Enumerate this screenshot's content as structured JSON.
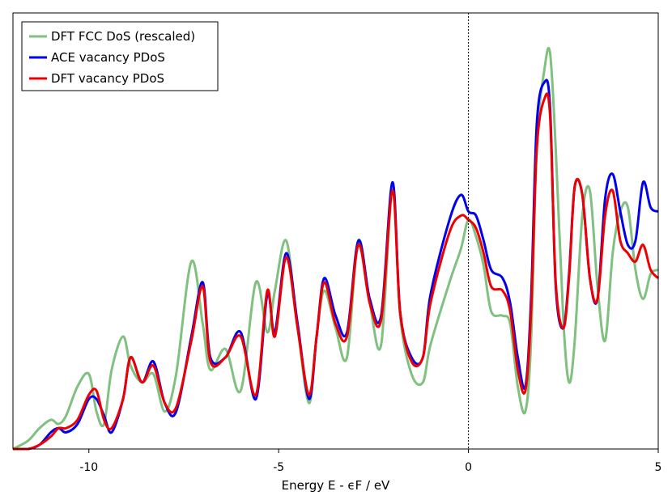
{
  "chart_data": {
    "type": "line",
    "xlabel": "Energy E - ϵF / eV",
    "ylabel": "",
    "xlim": [
      -12,
      5
    ],
    "ylim": [
      0,
      1
    ],
    "xticks": [
      -10,
      -5,
      0,
      5
    ],
    "xtick_labels": [
      "-10",
      "-5",
      "0",
      "5"
    ],
    "vline_x": 0,
    "legend_position": "top-left",
    "series": [
      {
        "name": "DFT FCC DoS (rescaled)",
        "color": "#80c080",
        "x": [
          -12.0,
          -11.6,
          -11.3,
          -11.0,
          -10.8,
          -10.6,
          -10.3,
          -10.0,
          -9.8,
          -9.6,
          -9.4,
          -9.1,
          -8.9,
          -8.6,
          -8.3,
          -8.0,
          -7.7,
          -7.3,
          -7.0,
          -6.8,
          -6.4,
          -6.0,
          -5.6,
          -5.3,
          -5.1,
          -4.8,
          -4.5,
          -4.2,
          -4.0,
          -3.8,
          -3.5,
          -3.2,
          -2.9,
          -2.6,
          -2.3,
          -2.0,
          -1.8,
          -1.5,
          -1.2,
          -1.0,
          -0.5,
          -0.2,
          0.0,
          0.2,
          0.4,
          0.6,
          0.9,
          1.1,
          1.3,
          1.5,
          1.65,
          1.8,
          2.0,
          2.15,
          2.3,
          2.5,
          2.65,
          2.8,
          3.0,
          3.2,
          3.4,
          3.6,
          3.8,
          4.0,
          4.2,
          4.4,
          4.6,
          4.8,
          5.0
        ],
        "y": [
          0.0,
          0.02,
          0.05,
          0.07,
          0.06,
          0.08,
          0.15,
          0.18,
          0.09,
          0.06,
          0.19,
          0.27,
          0.2,
          0.16,
          0.18,
          0.09,
          0.18,
          0.45,
          0.3,
          0.19,
          0.24,
          0.14,
          0.4,
          0.28,
          0.38,
          0.5,
          0.29,
          0.11,
          0.27,
          0.38,
          0.29,
          0.22,
          0.5,
          0.35,
          0.25,
          0.63,
          0.32,
          0.18,
          0.16,
          0.25,
          0.4,
          0.48,
          0.55,
          0.51,
          0.44,
          0.33,
          0.32,
          0.3,
          0.15,
          0.09,
          0.26,
          0.73,
          0.91,
          0.95,
          0.72,
          0.31,
          0.16,
          0.26,
          0.56,
          0.62,
          0.39,
          0.26,
          0.47,
          0.57,
          0.58,
          0.43,
          0.36,
          0.42,
          0.43
        ]
      },
      {
        "name": "ACE vacancy PDoS",
        "color": "#0000ee",
        "x": [
          -12.0,
          -11.6,
          -11.3,
          -11.0,
          -10.8,
          -10.6,
          -10.3,
          -10.0,
          -9.8,
          -9.6,
          -9.4,
          -9.1,
          -8.9,
          -8.6,
          -8.3,
          -8.0,
          -7.7,
          -7.3,
          -7.0,
          -6.8,
          -6.4,
          -6.0,
          -5.6,
          -5.3,
          -5.1,
          -4.8,
          -4.5,
          -4.2,
          -4.0,
          -3.8,
          -3.5,
          -3.2,
          -2.9,
          -2.6,
          -2.3,
          -2.0,
          -1.8,
          -1.5,
          -1.2,
          -1.0,
          -0.5,
          -0.2,
          0.0,
          0.2,
          0.4,
          0.6,
          0.9,
          1.1,
          1.3,
          1.5,
          1.65,
          1.8,
          2.0,
          2.15,
          2.3,
          2.5,
          2.65,
          2.8,
          3.0,
          3.2,
          3.4,
          3.6,
          3.8,
          4.0,
          4.2,
          4.4,
          4.6,
          4.8,
          5.0
        ],
        "y": [
          0.0,
          0.0,
          0.01,
          0.04,
          0.05,
          0.04,
          0.06,
          0.12,
          0.12,
          0.08,
          0.04,
          0.12,
          0.22,
          0.16,
          0.21,
          0.11,
          0.09,
          0.27,
          0.4,
          0.22,
          0.22,
          0.28,
          0.12,
          0.37,
          0.28,
          0.47,
          0.3,
          0.12,
          0.27,
          0.41,
          0.32,
          0.28,
          0.5,
          0.36,
          0.32,
          0.64,
          0.33,
          0.22,
          0.22,
          0.37,
          0.55,
          0.61,
          0.57,
          0.56,
          0.5,
          0.43,
          0.41,
          0.35,
          0.22,
          0.15,
          0.36,
          0.78,
          0.88,
          0.82,
          0.39,
          0.29,
          0.42,
          0.63,
          0.61,
          0.41,
          0.36,
          0.6,
          0.66,
          0.57,
          0.49,
          0.5,
          0.64,
          0.58,
          0.57
        ]
      },
      {
        "name": "DFT vacancy PDoS",
        "color": "#ee0000",
        "x": [
          -12.0,
          -11.6,
          -11.3,
          -11.0,
          -10.8,
          -10.6,
          -10.3,
          -10.0,
          -9.8,
          -9.6,
          -9.4,
          -9.1,
          -8.9,
          -8.6,
          -8.3,
          -8.0,
          -7.7,
          -7.3,
          -7.0,
          -6.8,
          -6.4,
          -6.0,
          -5.6,
          -5.3,
          -5.1,
          -4.8,
          -4.5,
          -4.2,
          -4.0,
          -3.8,
          -3.5,
          -3.2,
          -2.9,
          -2.6,
          -2.3,
          -2.0,
          -1.8,
          -1.5,
          -1.2,
          -1.0,
          -0.5,
          -0.2,
          0.0,
          0.2,
          0.4,
          0.6,
          0.9,
          1.1,
          1.3,
          1.5,
          1.65,
          1.8,
          2.0,
          2.15,
          2.3,
          2.5,
          2.65,
          2.8,
          3.0,
          3.2,
          3.4,
          3.6,
          3.8,
          4.0,
          4.2,
          4.4,
          4.6,
          4.8,
          5.0
        ],
        "y": [
          0.0,
          0.0,
          0.01,
          0.03,
          0.05,
          0.05,
          0.07,
          0.13,
          0.14,
          0.07,
          0.05,
          0.12,
          0.22,
          0.16,
          0.2,
          0.11,
          0.1,
          0.26,
          0.39,
          0.21,
          0.22,
          0.27,
          0.13,
          0.38,
          0.27,
          0.46,
          0.29,
          0.13,
          0.27,
          0.4,
          0.3,
          0.27,
          0.49,
          0.35,
          0.31,
          0.62,
          0.33,
          0.21,
          0.22,
          0.35,
          0.52,
          0.56,
          0.55,
          0.53,
          0.47,
          0.39,
          0.38,
          0.33,
          0.19,
          0.14,
          0.33,
          0.72,
          0.84,
          0.8,
          0.4,
          0.29,
          0.41,
          0.63,
          0.61,
          0.41,
          0.36,
          0.56,
          0.62,
          0.5,
          0.47,
          0.45,
          0.49,
          0.43,
          0.41
        ]
      }
    ]
  }
}
